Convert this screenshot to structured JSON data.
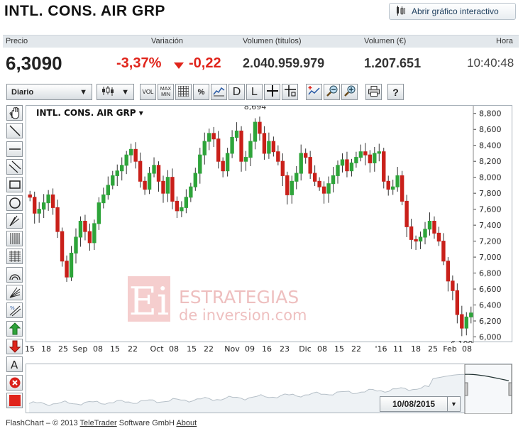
{
  "header": {
    "title": "INTL. CONS. AIR GRP",
    "interactive_button": "Abrir gráfico interactivo"
  },
  "quote": {
    "labels": {
      "price": "Precio",
      "variation": "Variación",
      "volume_titles": "Volumen (títulos)",
      "volume_eur": "Volumen (€)",
      "time": "Hora"
    },
    "price": "6,3090",
    "change_pct": "-3,37%",
    "change_abs": "-0,22",
    "volume_titles": "2.040.959.979",
    "volume_eur": "1.207.651",
    "time": "10:40:48",
    "down_color": "#e0241b"
  },
  "toolbar": {
    "period": "Diario",
    "vol": "VOL",
    "max": "MAX",
    "min": "MIN",
    "percent": "%",
    "d": "D",
    "l": "L"
  },
  "left_tools": [
    "hand-icon",
    "line-icon",
    "horizontal-line-icon",
    "channel-icon",
    "rectangle-icon",
    "circle-icon",
    "pitchfork-icon",
    "vertical-lines-icon",
    "grid-icon",
    "arc-icon",
    "fan-icon",
    "fibonacci-icon",
    "buy-arrow-icon",
    "sell-arrow-icon",
    "text-icon",
    "delete-icon",
    "color-icon"
  ],
  "chart": {
    "instrument_label": "INTL. CONS. AIR GRP",
    "max_label": "8,694",
    "min_label": "6,109",
    "watermark_logo": "Ei",
    "watermark_line1": "ESTRATEGIAS",
    "watermark_line2": "de inversion.com"
  },
  "chart_data": {
    "type": "candlestick",
    "yticks": [
      "8,800",
      "8,600",
      "8,400",
      "8,200",
      "8,000",
      "7,800",
      "7,600",
      "7,400",
      "7,200",
      "7,000",
      "6,800",
      "6,600",
      "6,400",
      "6,200",
      "6,000"
    ],
    "ylim": [
      5.96,
      8.86
    ],
    "xticks": [
      "15",
      "18",
      "25",
      "Sep",
      "08",
      "15",
      "22",
      "Oct",
      "08",
      "15",
      "22",
      "Nov",
      "09",
      "16",
      "23",
      "Dic",
      "08",
      "15",
      "22",
      "'16",
      "11",
      "18",
      "25",
      "Feb",
      "08"
    ],
    "closes": [
      7.75,
      7.55,
      7.6,
      7.68,
      7.78,
      7.62,
      7.32,
      6.95,
      6.75,
      7.05,
      7.25,
      7.45,
      7.32,
      7.18,
      7.42,
      7.68,
      7.78,
      7.9,
      8.02,
      8.08,
      8.15,
      8.28,
      8.35,
      8.2,
      7.95,
      7.85,
      8.05,
      8.15,
      7.95,
      7.8,
      8.0,
      7.7,
      7.58,
      7.62,
      7.75,
      7.88,
      8.05,
      8.28,
      8.45,
      8.55,
      8.48,
      8.2,
      8.08,
      8.3,
      8.5,
      8.58,
      8.2,
      8.25,
      8.45,
      8.69,
      8.55,
      8.3,
      8.45,
      8.32,
      8.2,
      8.02,
      7.78,
      7.95,
      8.05,
      8.3,
      8.25,
      8.05,
      7.95,
      7.88,
      7.8,
      7.92,
      8.02,
      8.15,
      8.22,
      8.08,
      8.18,
      8.25,
      8.32,
      8.28,
      8.18,
      8.3,
      8.32,
      7.95,
      7.85,
      7.88,
      8.02,
      7.7,
      7.38,
      7.22,
      7.2,
      7.25,
      7.35,
      7.45,
      7.3,
      7.2,
      6.95,
      6.7,
      6.58,
      6.28,
      6.11,
      6.25,
      6.3
    ],
    "nav_date": "10/08/2015"
  },
  "footer": {
    "prefix": "FlashChart – © 2013 ",
    "link1": "TeleTrader",
    "middle": " Software GmbH ",
    "link2": "About"
  }
}
